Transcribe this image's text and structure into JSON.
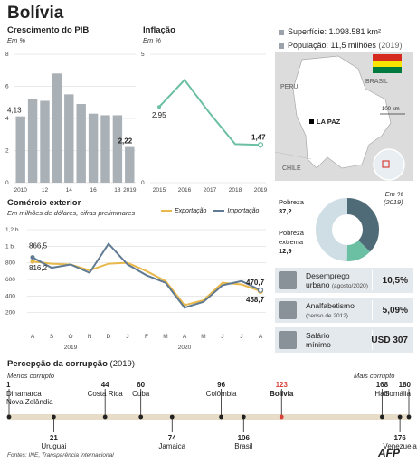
{
  "title": "Bolívia",
  "gdp": {
    "title": "Crescimento do PIB",
    "unit": "Em %",
    "chart_data": {
      "type": "bar",
      "categories": [
        "2010",
        "2011",
        "2012",
        "2013",
        "2014",
        "2015",
        "2016",
        "2017",
        "2018",
        "2019"
      ],
      "values": [
        4.13,
        5.2,
        5.1,
        6.8,
        5.5,
        4.9,
        4.3,
        4.2,
        4.2,
        2.22
      ],
      "tick_labels_x": [
        "2010",
        "12",
        "14",
        "16",
        "18",
        "2019"
      ],
      "yticks": [
        0,
        2,
        4,
        6,
        8
      ],
      "ylim": [
        0,
        8
      ],
      "labels": {
        "first": "4,13",
        "last": "2,22"
      },
      "color": "#a9b0b6"
    }
  },
  "inflation": {
    "title": "Inflação",
    "unit": "Em %",
    "chart_data": {
      "type": "line",
      "x": [
        "2015",
        "2016",
        "2017",
        "2018",
        "2019"
      ],
      "values": [
        2.95,
        4.0,
        2.7,
        1.5,
        1.47
      ],
      "yticks": [
        0,
        5
      ],
      "ylim": [
        0,
        5
      ],
      "labels": {
        "first": "2,95",
        "last": "1,47"
      },
      "color": "#6bbfa3"
    }
  },
  "trade": {
    "title": "Comércio exterior",
    "subtitle": "Em milhões de dólares, cifras preliminares",
    "legend": {
      "export": "Exportação",
      "import": "Importação"
    },
    "chart_data": {
      "type": "line",
      "categories": [
        "A",
        "S",
        "O",
        "N",
        "D",
        "J",
        "F",
        "M",
        "A",
        "M",
        "J",
        "J",
        "A"
      ],
      "year_labels": [
        "2019",
        "2020"
      ],
      "series": [
        {
          "name": "Exportação",
          "color": "#e8b84a",
          "values": [
            816.2,
            790,
            780,
            710,
            790,
            800,
            700,
            580,
            290,
            350,
            560,
            540,
            458.7
          ]
        },
        {
          "name": "Importação",
          "color": "#5f7a92",
          "values": [
            866.5,
            740,
            780,
            680,
            1030,
            780,
            650,
            560,
            260,
            330,
            530,
            580,
            470.7
          ]
        }
      ],
      "yticks": [
        "1",
        "200",
        "400",
        "600",
        "800",
        "1,2 b."
      ],
      "ytick_values": [
        1000,
        200,
        400,
        600,
        800,
        1200
      ],
      "y1b": "1 b.",
      "ylim": [
        0,
        1200
      ],
      "labels": {
        "imp_first": "866,5",
        "exp_first": "816,2",
        "imp_last": "470,7",
        "exp_last": "458,7"
      }
    }
  },
  "facts": {
    "area": "Superfície: 1.098.581 km²",
    "population": "População: 11,5 milhões",
    "population_year": "(2019)"
  },
  "map": {
    "peru": "PERU",
    "brasil": "BRASIL",
    "chile": "CHILE",
    "capital": "LA PAZ",
    "scale": "100 km"
  },
  "poverty": {
    "unit": "Em %",
    "year": "(2019)",
    "chart_data": {
      "type": "pie",
      "slices": [
        {
          "label": "Pobreza",
          "value": 37.2,
          "color": "#4f6b78"
        },
        {
          "label": "Pobreza extrema",
          "value": 12.9,
          "color": "#6bbfa3"
        },
        {
          "label": "",
          "value": 49.9,
          "color": "#cfdde5"
        }
      ]
    },
    "poverty_label": "Pobreza",
    "poverty_value": "37,2",
    "extreme_label_1": "Pobreza",
    "extreme_label_2": "extrema",
    "extreme_value": "12,9"
  },
  "indicators": [
    {
      "name": "Desemprego",
      "name2": "urbano",
      "note": "(agosto/2020)",
      "value": "10,5%"
    },
    {
      "name": "Analfabetismo",
      "name2": "",
      "note": "(censo de 2012)",
      "value": "5,09%"
    },
    {
      "name": "Salário",
      "name2": "mínimo",
      "note": "",
      "value": "USD 307"
    }
  ],
  "corruption": {
    "title": "Percepção da corrupção",
    "year": "(2019)",
    "less": "Menos corrupto",
    "more": "Mais corrupto",
    "top": [
      {
        "rank": "1",
        "name": "Dinamarca",
        "name2": "Nova Zelândia"
      },
      {
        "rank": "44",
        "name": "Costa Rica",
        "name2": ""
      },
      {
        "rank": "60",
        "name": "Cuba",
        "name2": ""
      },
      {
        "rank": "96",
        "name": "Colômbia",
        "name2": ""
      },
      {
        "rank": "123",
        "name": "Bolívia",
        "name2": ""
      },
      {
        "rank": "168",
        "name": "Haiti",
        "name2": ""
      },
      {
        "rank": "180",
        "name": "Somália",
        "name2": ""
      }
    ],
    "bottom": [
      {
        "rank": "21",
        "name": "Uruguai"
      },
      {
        "rank": "74",
        "name": "Jamaica"
      },
      {
        "rank": "106",
        "name": "Brasil"
      },
      {
        "rank": "176",
        "name": "Venezuela"
      }
    ],
    "highlight_color": "#d9413a"
  },
  "source": "Fontes: INE, Transparência internacional",
  "logo": "AFP"
}
